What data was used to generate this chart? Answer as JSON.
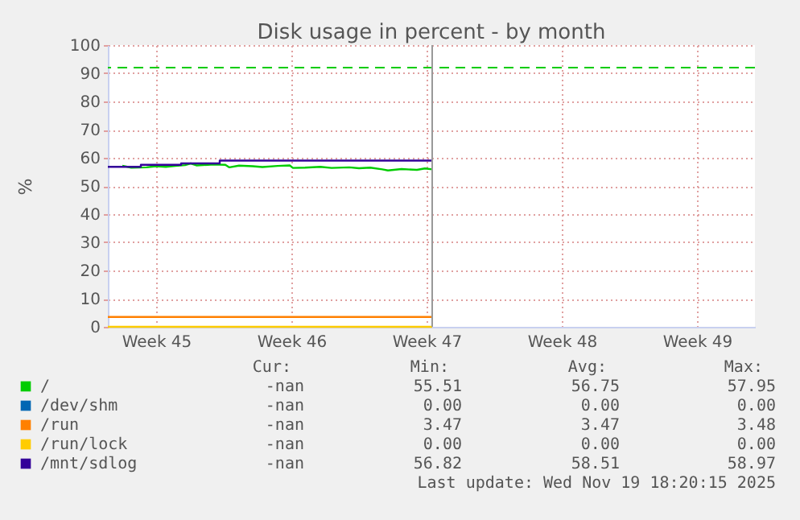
{
  "chart_data": {
    "type": "line",
    "title": "Disk usage in percent - by month",
    "ylabel": "%",
    "xlim": [
      "2025-11-04",
      "2025-12-07T12:00"
    ],
    "xticks": [
      {
        "value": "2025-11-06T12:00",
        "label": "Week 45"
      },
      {
        "value": "2025-11-13T12:00",
        "label": "Week 46"
      },
      {
        "value": "2025-11-20T12:00",
        "label": "Week 47"
      },
      {
        "value": "2025-11-27T12:00",
        "label": "Week 48"
      },
      {
        "value": "2025-12-04T12:00",
        "label": "Week 49"
      }
    ],
    "ylim": [
      0,
      100
    ],
    "yticks": [
      0,
      10,
      20,
      30,
      40,
      50,
      60,
      70,
      80,
      90,
      100
    ],
    "grid": true,
    "legend": "bottom",
    "marker": "none",
    "line_style": "solid",
    "series": [
      {
        "name": "/",
        "color": "#00cc00",
        "x": [
          "2025-11-04T18:00",
          "2025-11-05T05:00",
          "2025-11-06T00:00",
          "2025-11-06T12:00",
          "2025-11-07T00:00",
          "2025-11-07T12:00",
          "2025-11-08T00:00",
          "2025-11-08T07:00",
          "2025-11-08T14:00",
          "2025-11-09T12:00",
          "2025-11-10T02:00",
          "2025-11-10T07:00",
          "2025-11-10T19:00",
          "2025-11-11T12:00",
          "2025-11-12T00:00",
          "2025-11-12T19:00",
          "2025-11-13T10:00",
          "2025-11-13T14:00",
          "2025-11-14T05:00",
          "2025-11-15T00:00",
          "2025-11-15T14:00",
          "2025-11-16T12:00",
          "2025-11-17T00:00",
          "2025-11-17T14:00",
          "2025-11-18T05:00",
          "2025-11-18T12:00",
          "2025-11-19T05:00",
          "2025-11-20T00:00",
          "2025-11-20T10:00",
          "2025-11-20T19:00"
        ],
        "values": [
          57.2,
          56.5,
          56.6,
          57.0,
          56.8,
          57.1,
          57.4,
          58.0,
          57.3,
          57.6,
          57.5,
          56.6,
          57.2,
          57.0,
          56.7,
          57.1,
          57.3,
          56.4,
          56.5,
          56.8,
          56.4,
          56.6,
          56.3,
          56.5,
          55.9,
          55.5,
          56.0,
          55.7,
          56.2,
          55.9
        ]
      },
      {
        "name": "/dev/shm",
        "color": "#0066b3"
      },
      {
        "name": "/run",
        "color": "#ff8000",
        "x": [
          "2025-11-04",
          "2025-11-20T19:00"
        ],
        "values": [
          3.5,
          3.5
        ]
      },
      {
        "name": "/run/lock",
        "color": "#ffcc00",
        "x": [
          "2025-11-04",
          "2025-11-20T19:00"
        ],
        "values": [
          0,
          0
        ]
      },
      {
        "name": "/mnt/sdlog",
        "color": "#330099",
        "type": "step",
        "x": [
          "2025-11-04",
          "2025-11-05T17:00",
          "2025-11-07T19:00",
          "2025-11-09T19:00",
          "2025-11-20T19:00"
        ],
        "values": [
          56.8,
          57.5,
          58.0,
          59.0,
          59.0
        ]
      }
    ],
    "ref_lines": [
      {
        "axis": "y",
        "value": 92,
        "color": "#00cc00",
        "line_style": "dashed"
      },
      {
        "axis": "x",
        "value": "2025-11-20T19:00",
        "color": "#999999",
        "line_style": "solid"
      }
    ],
    "annotations": [
      "Cur: Min: Avg: Max:",
      "-nan 55.51 56.75 57.95",
      "-nan 0.00 0.00 0.00",
      "-nan 3.47 3.47 3.48",
      "-nan 0.00 0.00 0.00",
      "-nan 56.82 58.51 58.97",
      "Last update: Wed Nov 19 18:20:15 2025"
    ]
  }
}
